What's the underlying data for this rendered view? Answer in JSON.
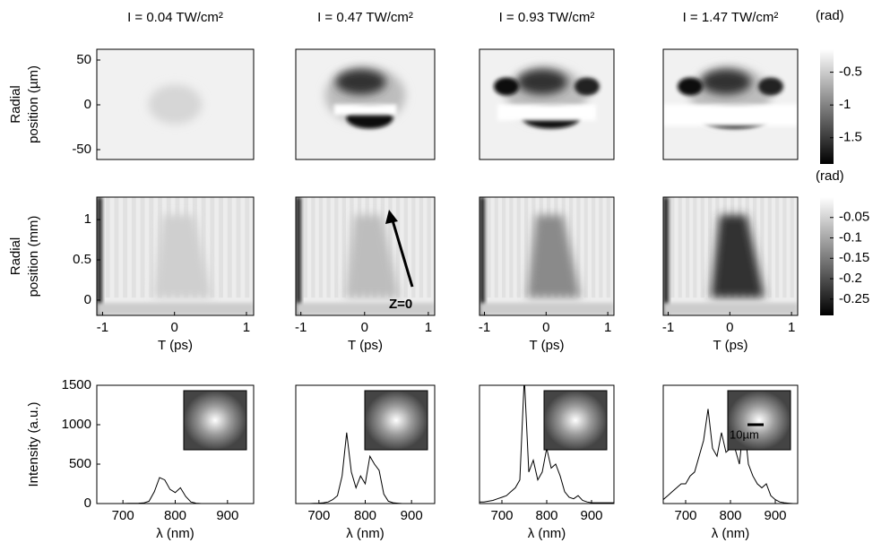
{
  "chart_data": [
    {
      "type": "image",
      "title": "I = 0.04 TW/cm²",
      "ylabel": [
        "Radial",
        "position (µm)"
      ],
      "ylim": [
        -61,
        62
      ],
      "yticks": [
        50,
        0,
        -50
      ]
    },
    {
      "type": "image",
      "title": "I = 0.47 TW/cm²",
      "ylim": [
        -61,
        62
      ]
    },
    {
      "type": "image",
      "title": "I = 0.93 TW/cm²",
      "ylim": [
        -61,
        62
      ]
    },
    {
      "type": "image",
      "title": "I = 1.47 TW/cm²",
      "ylim": [
        -61,
        62
      ]
    },
    {
      "type": "colorbar",
      "title": "(rad)",
      "ylim": [
        -1.9,
        -0.15
      ],
      "yticks": [
        -0.5,
        -1,
        -1.5
      ]
    },
    {
      "type": "image",
      "xlabel": "T (ps)",
      "ylabel": [
        "Radial",
        "position (mm)"
      ],
      "xlim": [
        -1.08,
        1.1
      ],
      "ylim": [
        -0.19,
        1.28
      ],
      "xticks": [
        -1,
        0,
        1
      ],
      "yticks": [
        0,
        0.5,
        1
      ]
    },
    {
      "type": "image",
      "xlabel": "T (ps)",
      "xlim": [
        -1.08,
        1.1
      ],
      "ylim": [
        -0.19,
        1.28
      ],
      "xticks": [
        -1,
        0,
        1
      ],
      "annotation": "Z=0"
    },
    {
      "type": "image",
      "xlabel": "T (ps)",
      "xlim": [
        -1.08,
        1.1
      ],
      "ylim": [
        -0.19,
        1.28
      ],
      "xticks": [
        -1,
        0,
        1
      ]
    },
    {
      "type": "image",
      "xlabel": "T (ps)",
      "xlim": [
        -1.08,
        1.1
      ],
      "ylim": [
        -0.19,
        1.28
      ],
      "xticks": [
        -1,
        0,
        1
      ]
    },
    {
      "type": "colorbar",
      "title": "(rad)",
      "ylim": [
        -0.29,
        0
      ],
      "yticks": [
        -0.05,
        -0.1,
        -0.15,
        -0.2,
        -0.25
      ]
    },
    {
      "type": "line",
      "xlabel": "λ (nm)",
      "ylabel": "Intensity (a.u.)",
      "xlim": [
        650,
        950
      ],
      "ylim": [
        0,
        1500
      ],
      "xticks": [
        700,
        800,
        900
      ],
      "yticks": [
        0,
        500,
        1000,
        1500
      ],
      "color": "#000000",
      "x": [
        650,
        660,
        670,
        680,
        690,
        700,
        710,
        720,
        730,
        740,
        750,
        760,
        770,
        780,
        790,
        800,
        810,
        820,
        830,
        840,
        850,
        860,
        870,
        880,
        890,
        900,
        910,
        920,
        930,
        940,
        950
      ],
      "values": [
        0,
        0,
        0,
        0,
        0,
        0,
        2,
        3,
        5,
        8,
        30,
        150,
        330,
        300,
        180,
        140,
        200,
        90,
        20,
        5,
        0,
        0,
        0,
        0,
        0,
        0,
        0,
        0,
        0,
        0,
        0
      ]
    },
    {
      "type": "line",
      "xlabel": "λ (nm)",
      "xlim": [
        650,
        950
      ],
      "ylim": [
        0,
        1500
      ],
      "xticks": [
        700,
        800,
        900
      ],
      "color": "#000000",
      "x": [
        650,
        660,
        670,
        680,
        690,
        700,
        710,
        720,
        730,
        740,
        750,
        760,
        770,
        780,
        790,
        800,
        810,
        820,
        830,
        840,
        850,
        860,
        870,
        880,
        890,
        900,
        910,
        920,
        930,
        940,
        950
      ],
      "values": [
        0,
        0,
        0,
        0,
        2,
        5,
        10,
        20,
        50,
        100,
        350,
        900,
        400,
        200,
        350,
        250,
        600,
        500,
        420,
        120,
        30,
        10,
        5,
        0,
        0,
        0,
        0,
        0,
        0,
        0,
        0
      ]
    },
    {
      "type": "line",
      "xlabel": "λ (nm)",
      "xlim": [
        650,
        950
      ],
      "ylim": [
        0,
        1500
      ],
      "xticks": [
        700,
        800,
        900
      ],
      "color": "#000000",
      "x": [
        650,
        660,
        670,
        680,
        690,
        700,
        710,
        720,
        730,
        740,
        750,
        760,
        770,
        780,
        790,
        800,
        810,
        820,
        830,
        840,
        850,
        860,
        870,
        880,
        890,
        900,
        910,
        920,
        930,
        940,
        950
      ],
      "values": [
        20,
        20,
        30,
        40,
        60,
        80,
        100,
        150,
        200,
        300,
        1600,
        400,
        550,
        300,
        400,
        700,
        450,
        500,
        350,
        150,
        80,
        60,
        100,
        40,
        20,
        10,
        10,
        10,
        10,
        10,
        10
      ]
    },
    {
      "type": "line",
      "xlabel": "λ (nm)",
      "xlim": [
        650,
        950
      ],
      "ylim": [
        0,
        1500
      ],
      "xticks": [
        700,
        800,
        900
      ],
      "color": "#000000",
      "inset_label": "10µm",
      "x": [
        650,
        660,
        670,
        680,
        690,
        700,
        710,
        720,
        730,
        740,
        750,
        760,
        770,
        780,
        790,
        800,
        810,
        820,
        830,
        840,
        850,
        860,
        870,
        880,
        890,
        900,
        910,
        920,
        930,
        940,
        950
      ],
      "values": [
        50,
        100,
        150,
        200,
        250,
        250,
        350,
        400,
        600,
        800,
        1200,
        700,
        600,
        900,
        650,
        700,
        700,
        500,
        1050,
        500,
        350,
        250,
        200,
        250,
        100,
        50,
        20,
        10,
        5,
        0,
        0
      ]
    }
  ]
}
